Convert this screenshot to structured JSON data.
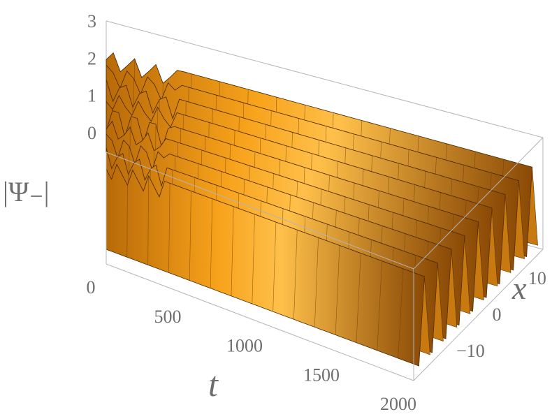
{
  "chart_data": {
    "type": "surface3d",
    "title": "",
    "xlabel": "t",
    "ylabel": "x",
    "zlabel": "|Ψ₋|",
    "xlim": [
      0,
      2000
    ],
    "ylim": [
      -18,
      18
    ],
    "zlim": [
      0,
      3
    ],
    "x_ticks": [
      "0",
      "500",
      "1000",
      "1500",
      "2000"
    ],
    "x_tick_values": [
      0,
      500,
      1000,
      1500,
      2000
    ],
    "y_ticks": [
      "−10",
      "0",
      "10"
    ],
    "y_tick_values": [
      -10,
      0,
      10
    ],
    "z_ticks": [
      "0",
      "1",
      "2",
      "3"
    ],
    "z_tick_values": [
      0,
      1,
      2,
      3
    ],
    "surface": {
      "description_of_shape": "stripe lattice along x, uniform in t after transient",
      "stripe_centers_x": [
        -15,
        -11.3,
        -7.5,
        -3.8,
        0,
        3.8,
        7.5,
        11.3,
        15
      ],
      "stripe_peak": 2.5,
      "transient_end_t": 350,
      "color": "#f7a21b"
    }
  }
}
